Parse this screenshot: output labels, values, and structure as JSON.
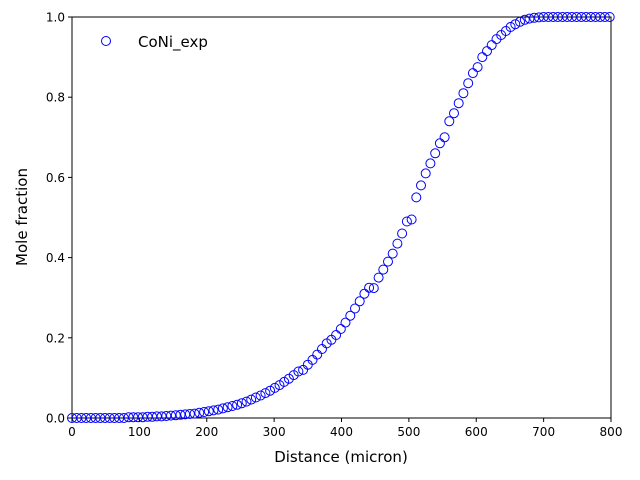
{
  "chart_data": {
    "type": "scatter",
    "title": "",
    "xlabel": "Distance (micron)",
    "ylabel": "Mole fraction",
    "xlim": [
      0,
      800
    ],
    "ylim": [
      0,
      1.0
    ],
    "xticks": [
      0,
      100,
      200,
      300,
      400,
      500,
      600,
      700,
      800
    ],
    "yticks": [
      0.0,
      0.2,
      0.4,
      0.6,
      0.8,
      1.0
    ],
    "xtick_labels": [
      "0",
      "100",
      "200",
      "300",
      "400",
      "500",
      "600",
      "700",
      "800"
    ],
    "ytick_labels": [
      "0.0",
      "0.2",
      "0.4",
      "0.6",
      "0.8",
      "1.0"
    ],
    "grid": false,
    "legend_position": "top-left",
    "marker": "open-circle",
    "color": "#0000ff",
    "series": [
      {
        "name": "CoNi_exp",
        "x": [
          0,
          7,
          14,
          21,
          28,
          35,
          42,
          49,
          56,
          63,
          70,
          77,
          84,
          91,
          98,
          105,
          112,
          119,
          126,
          133,
          140,
          147,
          154,
          161,
          168,
          175,
          182,
          189,
          196,
          203,
          210,
          217,
          224,
          231,
          238,
          245,
          252,
          259,
          266,
          273,
          280,
          287,
          294,
          301,
          308,
          315,
          322,
          329,
          336,
          343,
          350,
          357,
          364,
          371,
          378,
          385,
          392,
          399,
          406,
          413,
          420,
          427,
          434,
          441,
          448,
          455,
          462,
          469,
          476,
          483,
          490,
          497,
          504,
          511,
          518,
          525,
          532,
          539,
          546,
          553,
          560,
          567,
          574,
          581,
          588,
          595,
          602,
          609,
          616,
          623,
          630,
          637,
          644,
          651,
          658,
          665,
          672,
          679,
          686,
          693,
          700,
          707,
          714,
          721,
          728,
          735,
          742,
          749,
          756,
          763,
          770,
          777,
          784,
          791,
          798
        ],
        "y": [
          0.0,
          0.0,
          0.0,
          0.0,
          0.0,
          0.0,
          0.0,
          0.0,
          0.0,
          0.0,
          0.0,
          0.0,
          0.002,
          0.002,
          0.002,
          0.002,
          0.003,
          0.003,
          0.004,
          0.004,
          0.005,
          0.006,
          0.007,
          0.008,
          0.009,
          0.01,
          0.011,
          0.013,
          0.015,
          0.017,
          0.019,
          0.021,
          0.024,
          0.027,
          0.03,
          0.033,
          0.037,
          0.041,
          0.046,
          0.051,
          0.056,
          0.062,
          0.068,
          0.075,
          0.082,
          0.09,
          0.098,
          0.107,
          0.116,
          0.12,
          0.133,
          0.145,
          0.158,
          0.172,
          0.186,
          0.195,
          0.207,
          0.222,
          0.238,
          0.255,
          0.273,
          0.291,
          0.31,
          0.325,
          0.324,
          0.35,
          0.37,
          0.39,
          0.41,
          0.435,
          0.46,
          0.49,
          0.495,
          0.55,
          0.58,
          0.61,
          0.635,
          0.66,
          0.685,
          0.7,
          0.74,
          0.76,
          0.785,
          0.81,
          0.835,
          0.86,
          0.875,
          0.9,
          0.915,
          0.93,
          0.945,
          0.955,
          0.965,
          0.975,
          0.982,
          0.988,
          0.993,
          0.996,
          0.998,
          0.999,
          1.0,
          1.0,
          1.0,
          1.0,
          1.0,
          1.0,
          1.0,
          1.0,
          1.0,
          1.0,
          1.0,
          1.0,
          1.0,
          1.0,
          1.0
        ]
      }
    ]
  }
}
